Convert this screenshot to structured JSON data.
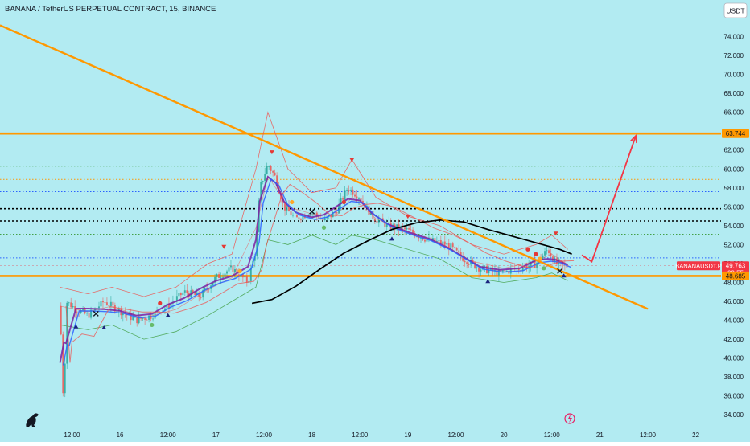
{
  "header": {
    "title": "BANANA / TetherUS PERPETUAL CONTRACT, 15, BINANCE",
    "currency_button": "USDT"
  },
  "colors": {
    "background": "#b2ebf2",
    "orange": "#ff9800",
    "projection": "#f23645",
    "ma_black": "#000000",
    "ma_purple": "#7b1fa2",
    "ma_blue": "#2962ff",
    "band_red": "#ef5350",
    "band_green": "#43a047",
    "candle_up": "#26a69a",
    "candle_down": "#ef5350"
  },
  "chart_data": {
    "type": "line",
    "title": "BANANA / TetherUS PERPETUAL CONTRACT, 15, BINANCE",
    "ylabel": "USDT",
    "ylim": [
      33.0,
      76.0
    ],
    "x_range_hours": [
      -18,
      144
    ],
    "y_ticks": [
      34.0,
      36.0,
      38.0,
      40.0,
      42.0,
      44.0,
      46.0,
      48.0,
      50.0,
      52.0,
      54.0,
      56.0,
      58.0,
      60.0,
      62.0,
      64.0,
      66.0,
      68.0,
      70.0,
      72.0,
      74.0
    ],
    "x_ticks": [
      {
        "label": "12:00",
        "h": 0
      },
      {
        "label": "16",
        "h": 12
      },
      {
        "label": "12:00",
        "h": 24
      },
      {
        "label": "17",
        "h": 36
      },
      {
        "label": "12:00",
        "h": 48
      },
      {
        "label": "18",
        "h": 60
      },
      {
        "label": "12:00",
        "h": 72
      },
      {
        "label": "19",
        "h": 84
      },
      {
        "label": "12:00",
        "h": 96
      },
      {
        "label": "20",
        "h": 108
      },
      {
        "label": "12:00",
        "h": 120
      },
      {
        "label": "21",
        "h": 132
      },
      {
        "label": "12:00",
        "h": 144
      },
      {
        "label": "22",
        "h": 156
      }
    ],
    "price_badges": [
      {
        "label": "63.744",
        "value": 63.744,
        "color": "#ff9800"
      },
      {
        "label": "49.763",
        "value": 49.763,
        "color": "#f23645",
        "sub": "02:55"
      },
      {
        "label": "48.685",
        "value": 48.685,
        "color": "#ff9800"
      }
    ],
    "symbol_tag": "BANANAUSDT.P",
    "horizontal_levels": [
      {
        "value": 63.744,
        "style": "solid",
        "color": "#ff9800"
      },
      {
        "value": 48.685,
        "style": "solid",
        "color": "#ff9800"
      },
      {
        "value": 60.3,
        "style": "dotted",
        "color": "#43a047"
      },
      {
        "value": 58.9,
        "style": "dotted",
        "color": "#ff9800"
      },
      {
        "value": 57.6,
        "style": "dotted",
        "color": "#2962ff"
      },
      {
        "value": 55.8,
        "style": "dotted",
        "color": "#000000"
      },
      {
        "value": 54.5,
        "style": "dotted",
        "color": "#000000"
      },
      {
        "value": 53.1,
        "style": "dotted",
        "color": "#43a047"
      },
      {
        "value": 50.6,
        "style": "dotted",
        "color": "#2962ff"
      }
    ],
    "trendline": {
      "from": {
        "h": -18,
        "value": 75.2
      },
      "to": {
        "h": 144,
        "value": 45.2
      }
    },
    "projection": [
      {
        "h": 127.5,
        "value": 50.9
      },
      {
        "h": 130,
        "value": 50.2
      },
      {
        "h": 141,
        "value": 63.5
      }
    ],
    "ma_long": [
      {
        "h": 45,
        "value": 45.8
      },
      {
        "h": 50,
        "value": 46.2
      },
      {
        "h": 56,
        "value": 47.6
      },
      {
        "h": 62,
        "value": 49.4
      },
      {
        "h": 68,
        "value": 51.1
      },
      {
        "h": 74,
        "value": 52.4
      },
      {
        "h": 80,
        "value": 53.6
      },
      {
        "h": 86,
        "value": 54.3
      },
      {
        "h": 92,
        "value": 54.6
      },
      {
        "h": 98,
        "value": 54.4
      },
      {
        "h": 104,
        "value": 53.6
      },
      {
        "h": 110,
        "value": 52.9
      },
      {
        "h": 116,
        "value": 52.2
      },
      {
        "h": 122,
        "value": 51.5
      },
      {
        "h": 125,
        "value": 51.0
      }
    ],
    "price_path": [
      {
        "h": -3,
        "value": 45.5
      },
      {
        "h": -2,
        "value": 33.5
      },
      {
        "h": -1.5,
        "value": 46.0
      },
      {
        "h": 1,
        "value": 45.2
      },
      {
        "h": 4,
        "value": 44.5
      },
      {
        "h": 8,
        "value": 46.0
      },
      {
        "h": 12,
        "value": 45.0
      },
      {
        "h": 16,
        "value": 44.0
      },
      {
        "h": 20,
        "value": 44.5
      },
      {
        "h": 24,
        "value": 45.5
      },
      {
        "h": 28,
        "value": 47.0
      },
      {
        "h": 32,
        "value": 46.5
      },
      {
        "h": 36,
        "value": 48.5
      },
      {
        "h": 40,
        "value": 49.5
      },
      {
        "h": 44,
        "value": 48.0
      },
      {
        "h": 46,
        "value": 51.5
      },
      {
        "h": 47,
        "value": 58.0
      },
      {
        "h": 49,
        "value": 60.5
      },
      {
        "h": 51,
        "value": 59.0
      },
      {
        "h": 53,
        "value": 56.0
      },
      {
        "h": 56,
        "value": 54.7
      },
      {
        "h": 60,
        "value": 55.5
      },
      {
        "h": 63,
        "value": 54.5
      },
      {
        "h": 66,
        "value": 55.5
      },
      {
        "h": 69,
        "value": 58.0
      },
      {
        "h": 72,
        "value": 57.0
      },
      {
        "h": 75,
        "value": 55.0
      },
      {
        "h": 79,
        "value": 54.0
      },
      {
        "h": 84,
        "value": 53.5
      },
      {
        "h": 89,
        "value": 52.5
      },
      {
        "h": 94,
        "value": 52.0
      },
      {
        "h": 98,
        "value": 50.5
      },
      {
        "h": 102,
        "value": 49.5
      },
      {
        "h": 107,
        "value": 49.0
      },
      {
        "h": 112,
        "value": 49.5
      },
      {
        "h": 116,
        "value": 50.0
      },
      {
        "h": 119,
        "value": 51.5
      },
      {
        "h": 121,
        "value": 50.0
      },
      {
        "h": 124,
        "value": 49.7
      }
    ],
    "band_upper": [
      {
        "h": -3,
        "value": 47.5
      },
      {
        "h": 4,
        "value": 46.8
      },
      {
        "h": 10,
        "value": 47.5
      },
      {
        "h": 18,
        "value": 46.5
      },
      {
        "h": 26,
        "value": 47.5
      },
      {
        "h": 34,
        "value": 50.0
      },
      {
        "h": 40,
        "value": 51.0
      },
      {
        "h": 46,
        "value": 60.0
      },
      {
        "h": 49,
        "value": 66.0
      },
      {
        "h": 54,
        "value": 60.0
      },
      {
        "h": 60,
        "value": 57.5
      },
      {
        "h": 66,
        "value": 58.0
      },
      {
        "h": 70,
        "value": 61.0
      },
      {
        "h": 76,
        "value": 57.0
      },
      {
        "h": 84,
        "value": 55.0
      },
      {
        "h": 92,
        "value": 54.0
      },
      {
        "h": 100,
        "value": 52.0
      },
      {
        "h": 108,
        "value": 51.0
      },
      {
        "h": 116,
        "value": 52.0
      },
      {
        "h": 120,
        "value": 53.0
      },
      {
        "h": 124,
        "value": 51.5
      }
    ],
    "band_lower": [
      {
        "h": -3,
        "value": 43.5
      },
      {
        "h": 4,
        "value": 43.0
      },
      {
        "h": 10,
        "value": 43.5
      },
      {
        "h": 18,
        "value": 42.0
      },
      {
        "h": 26,
        "value": 42.8
      },
      {
        "h": 34,
        "value": 44.5
      },
      {
        "h": 40,
        "value": 46.0
      },
      {
        "h": 46,
        "value": 47.5
      },
      {
        "h": 49,
        "value": 52.5
      },
      {
        "h": 54,
        "value": 52.0
      },
      {
        "h": 60,
        "value": 53.0
      },
      {
        "h": 66,
        "value": 52.0
      },
      {
        "h": 70,
        "value": 53.0
      },
      {
        "h": 76,
        "value": 52.5
      },
      {
        "h": 84,
        "value": 51.5
      },
      {
        "h": 92,
        "value": 50.5
      },
      {
        "h": 100,
        "value": 48.5
      },
      {
        "h": 108,
        "value": 48.0
      },
      {
        "h": 116,
        "value": 48.5
      },
      {
        "h": 120,
        "value": 49.0
      },
      {
        "h": 124,
        "value": 48.2
      }
    ],
    "markers": [
      {
        "h": 1,
        "value": 43.3,
        "type": "up"
      },
      {
        "h": 8,
        "value": 43.2,
        "type": "up"
      },
      {
        "h": 24,
        "value": 44.5,
        "type": "up"
      },
      {
        "h": 80,
        "value": 52.6,
        "type": "up"
      },
      {
        "h": 104,
        "value": 48.1,
        "type": "up"
      },
      {
        "h": 123,
        "value": 48.7,
        "type": "up"
      },
      {
        "h": 38,
        "value": 51.8,
        "type": "down"
      },
      {
        "h": 50,
        "value": 61.8,
        "type": "down"
      },
      {
        "h": 70,
        "value": 61.0,
        "type": "down"
      },
      {
        "h": 84,
        "value": 55.0,
        "type": "down"
      },
      {
        "h": 121,
        "value": 53.2,
        "type": "down"
      },
      {
        "h": 6,
        "value": 44.7,
        "type": "x"
      },
      {
        "h": 60,
        "value": 55.5,
        "type": "x"
      },
      {
        "h": 122,
        "value": 49.2,
        "type": "x"
      },
      {
        "h": 22,
        "value": 45.8,
        "type": "dot-red"
      },
      {
        "h": 68,
        "value": 56.5,
        "type": "dot-red"
      },
      {
        "h": 114,
        "value": 51.5,
        "type": "dot-red"
      },
      {
        "h": 116,
        "value": 51.0,
        "type": "dot-red"
      },
      {
        "h": 20,
        "value": 43.5,
        "type": "dot-green"
      },
      {
        "h": 63,
        "value": 53.8,
        "type": "dot-green"
      },
      {
        "h": 118,
        "value": 49.5,
        "type": "dot-green"
      },
      {
        "h": 42,
        "value": 49.2,
        "type": "dot-orange"
      },
      {
        "h": 55,
        "value": 56.5,
        "type": "dot-orange"
      },
      {
        "h": 117,
        "value": 50.5,
        "type": "dot-orange"
      }
    ]
  }
}
